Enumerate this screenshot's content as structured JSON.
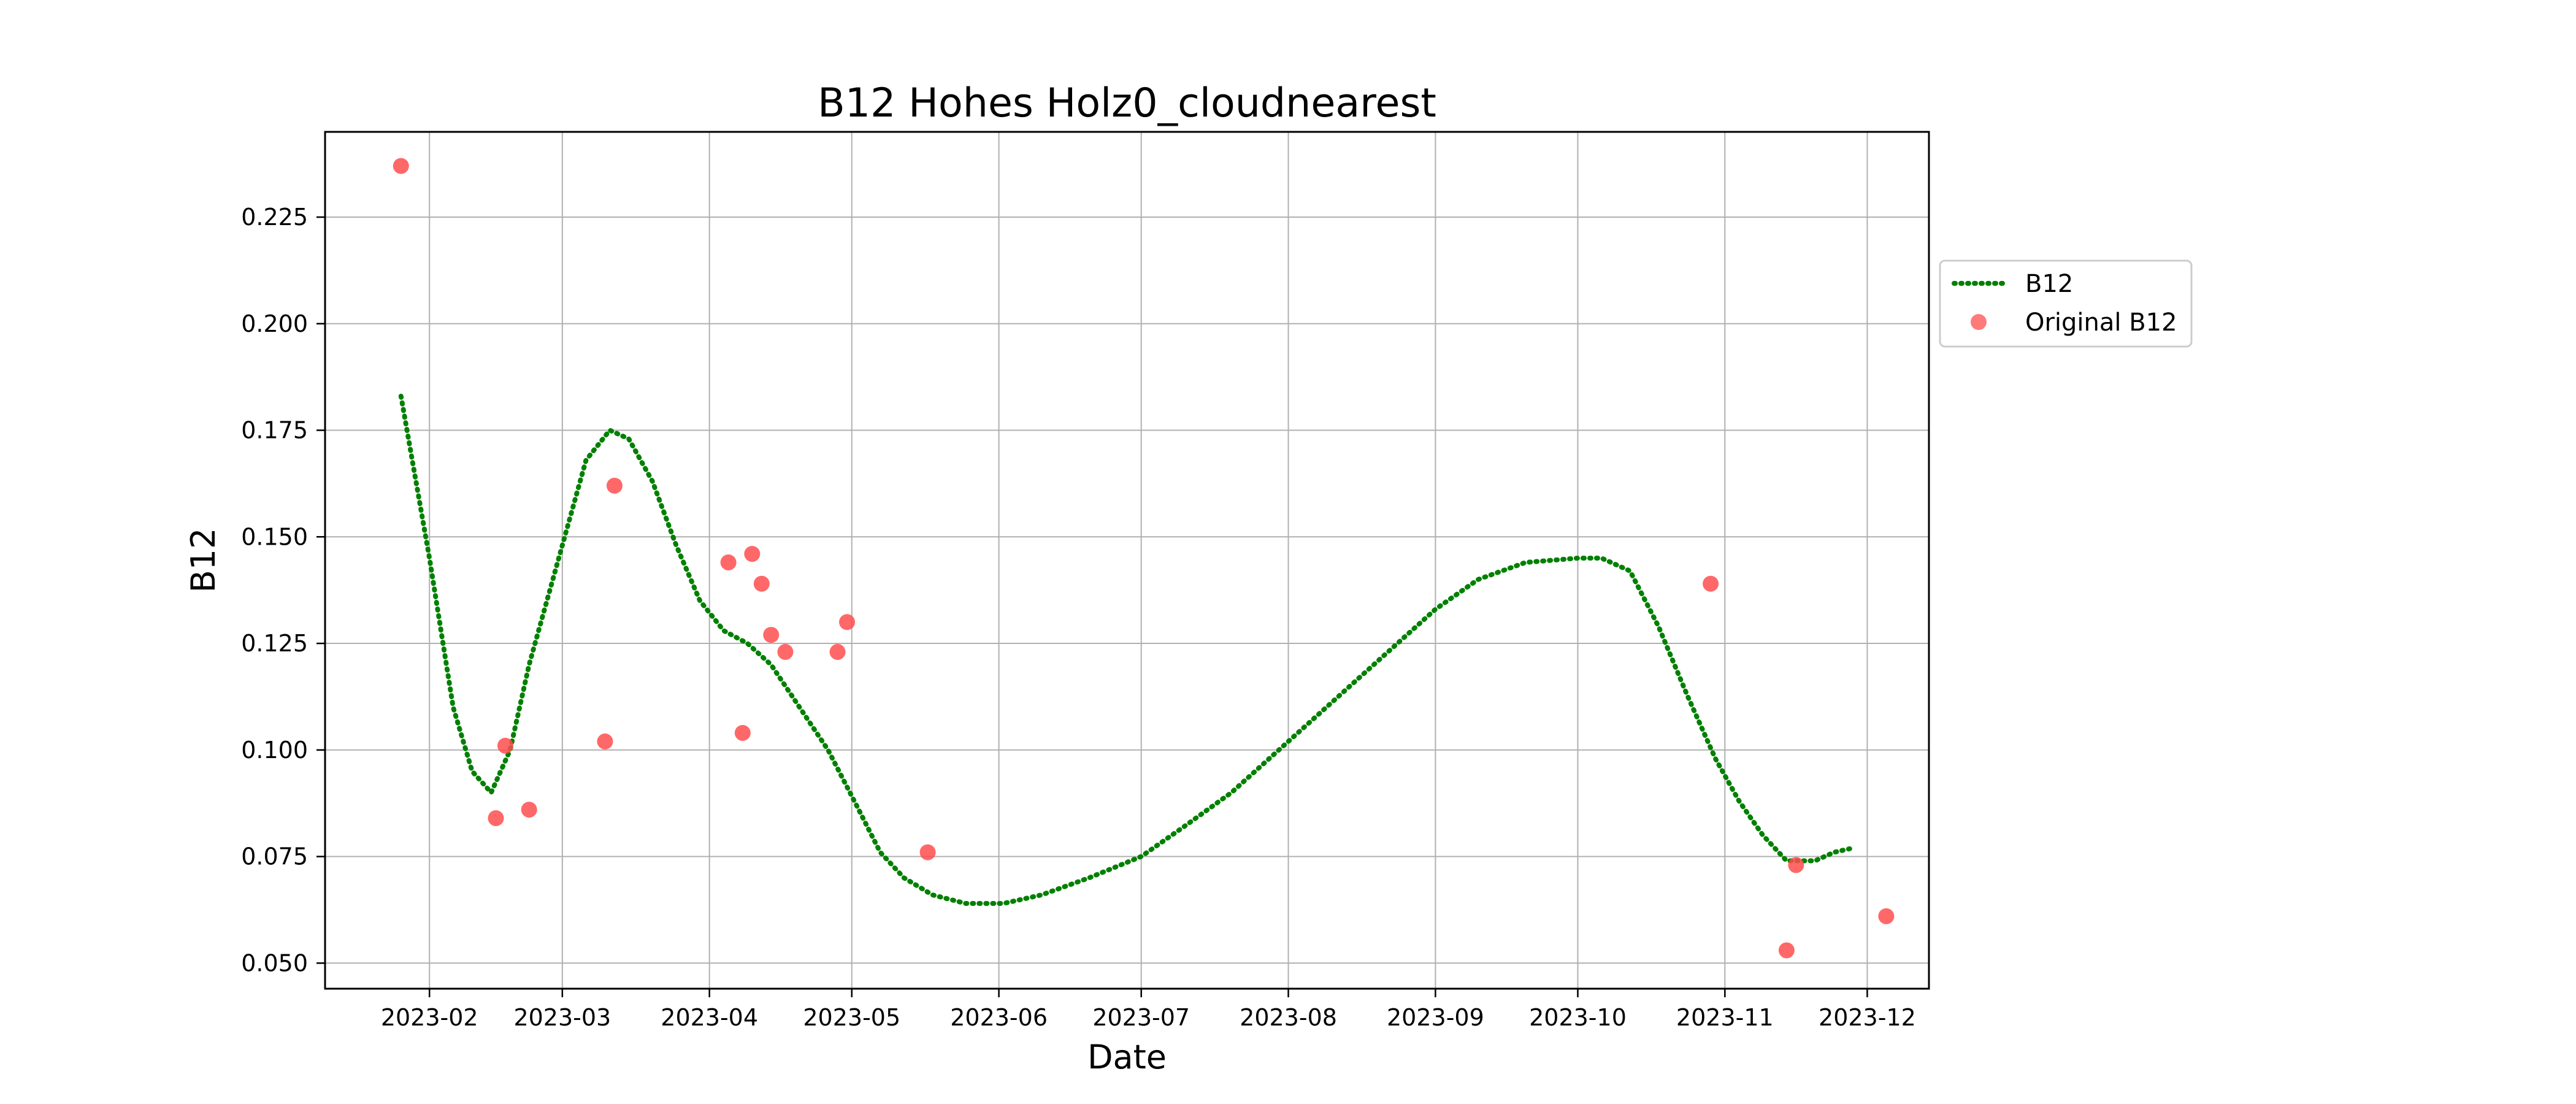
{
  "chart_data": {
    "type": "line",
    "title": "B12 Hohes Holz0_cloudnearest",
    "xlabel": "Date",
    "ylabel": "B12",
    "xlim": [
      "2023-01-10",
      "2023-12-14"
    ],
    "ylim": [
      0.044,
      0.245
    ],
    "x_ticks": [
      "2023-02-01",
      "2023-03-01",
      "2023-04-01",
      "2023-05-01",
      "2023-06-01",
      "2023-07-01",
      "2023-08-01",
      "2023-09-01",
      "2023-10-01",
      "2023-11-01",
      "2023-12-01"
    ],
    "x_tick_labels": [
      "2023-02",
      "2023-03",
      "2023-04",
      "2023-05",
      "2023-06",
      "2023-07",
      "2023-08",
      "2023-09",
      "2023-10",
      "2023-11",
      "2023-12"
    ],
    "y_ticks": [
      0.05,
      0.075,
      0.1,
      0.125,
      0.15,
      0.175,
      0.2,
      0.225
    ],
    "y_tick_labels": [
      "0.050",
      "0.075",
      "0.100",
      "0.125",
      "0.150",
      "0.175",
      "0.200",
      "0.225"
    ],
    "grid": true,
    "legend_position": "outside-right",
    "series": [
      {
        "name": "B12",
        "style": "dotted-line",
        "color": "#008000",
        "x": [
          "2023-01-26",
          "2023-02-01",
          "2023-02-06",
          "2023-02-10",
          "2023-02-14",
          "2023-02-18",
          "2023-02-22",
          "2023-03-01",
          "2023-03-06",
          "2023-03-11",
          "2023-03-15",
          "2023-03-20",
          "2023-03-25",
          "2023-03-30",
          "2023-04-04",
          "2023-04-09",
          "2023-04-14",
          "2023-04-20",
          "2023-04-26",
          "2023-05-02",
          "2023-05-07",
          "2023-05-12",
          "2023-05-18",
          "2023-05-25",
          "2023-06-02",
          "2023-06-10",
          "2023-06-20",
          "2023-07-01",
          "2023-07-10",
          "2023-07-20",
          "2023-08-01",
          "2023-08-10",
          "2023-08-20",
          "2023-09-01",
          "2023-09-10",
          "2023-09-20",
          "2023-10-01",
          "2023-10-06",
          "2023-10-12",
          "2023-10-18",
          "2023-10-24",
          "2023-10-30",
          "2023-11-04",
          "2023-11-09",
          "2023-11-14",
          "2023-11-20",
          "2023-11-24",
          "2023-11-28"
        ],
        "y": [
          0.183,
          0.145,
          0.11,
          0.095,
          0.09,
          0.1,
          0.12,
          0.148,
          0.168,
          0.175,
          0.173,
          0.163,
          0.148,
          0.135,
          0.128,
          0.125,
          0.12,
          0.11,
          0.1,
          0.087,
          0.076,
          0.07,
          0.066,
          0.064,
          0.064,
          0.066,
          0.07,
          0.075,
          0.082,
          0.09,
          0.102,
          0.111,
          0.121,
          0.133,
          0.14,
          0.144,
          0.145,
          0.145,
          0.142,
          0.129,
          0.113,
          0.098,
          0.088,
          0.08,
          0.074,
          0.074,
          0.076,
          0.077
        ]
      },
      {
        "name": "Original B12",
        "style": "scatter",
        "color": "#ff4d4d",
        "x": [
          "2023-01-26",
          "2023-02-15",
          "2023-02-17",
          "2023-02-22",
          "2023-03-10",
          "2023-03-12",
          "2023-04-05",
          "2023-04-08",
          "2023-04-10",
          "2023-04-12",
          "2023-04-14",
          "2023-04-17",
          "2023-04-28",
          "2023-04-30",
          "2023-05-17",
          "2023-10-29",
          "2023-11-14",
          "2023-11-16",
          "2023-12-05"
        ],
        "y": [
          0.237,
          0.084,
          0.101,
          0.086,
          0.102,
          0.162,
          0.144,
          0.104,
          0.146,
          0.139,
          0.127,
          0.123,
          0.123,
          0.13,
          0.076,
          0.139,
          0.053,
          0.073,
          0.061
        ]
      }
    ]
  }
}
